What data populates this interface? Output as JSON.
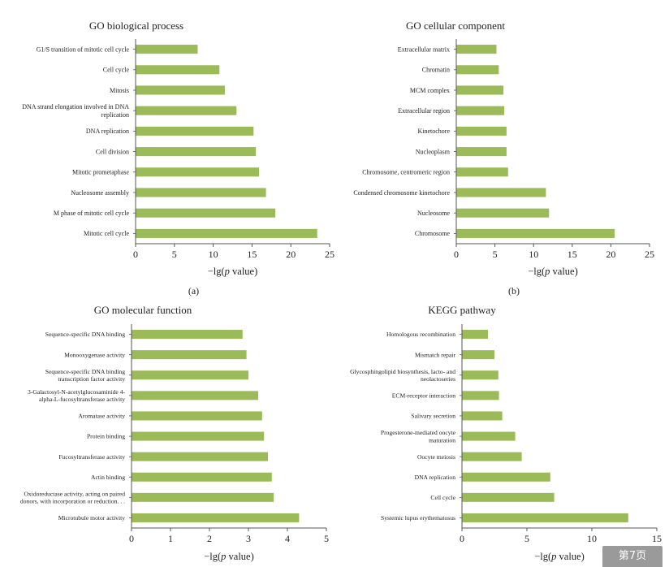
{
  "chart_data": [
    {
      "type": "bar",
      "orientation": "horizontal",
      "title": "GO biological process",
      "panel_label": "(a)",
      "xlabel_prefix": "−lg(",
      "xlabel_italic": "p",
      "xlabel_suffix": " value)",
      "xlim": [
        0,
        25
      ],
      "xticks": [
        0,
        5,
        10,
        15,
        20,
        25
      ],
      "bar_color": "#9bbb59",
      "categories": [
        [
          "G1/S transition of mitotic cell cycle"
        ],
        [
          "Cell cycle"
        ],
        [
          "Mitosis"
        ],
        [
          "DNA strand elongation involved in DNA",
          "replication"
        ],
        [
          "DNA replication"
        ],
        [
          "Cell division"
        ],
        [
          "Mitotic prometaphase"
        ],
        [
          "Nucleosome assembly"
        ],
        [
          "M phase of mitotic cell cycle"
        ],
        [
          "Mitotic cell cycle"
        ]
      ],
      "values": [
        8.0,
        10.8,
        11.5,
        13.0,
        15.2,
        15.5,
        15.9,
        16.8,
        18.0,
        23.4
      ]
    },
    {
      "type": "bar",
      "orientation": "horizontal",
      "title": "GO cellular component",
      "panel_label": "(b)",
      "xlabel_prefix": "−lg(",
      "xlabel_italic": "p",
      "xlabel_suffix": " value)",
      "xlim": [
        0,
        25
      ],
      "xticks": [
        0,
        5,
        10,
        15,
        20,
        25
      ],
      "bar_color": "#9bbb59",
      "categories": [
        [
          "Extracellular matrix"
        ],
        [
          "Chromatin"
        ],
        [
          "MCM complex"
        ],
        [
          "Extracellular region"
        ],
        [
          "Kinetochore"
        ],
        [
          "Nucleoplasm"
        ],
        [
          "Chromosome, centromeric region"
        ],
        [
          "Condensed chromosome kinetochore"
        ],
        [
          "Nucleosome"
        ],
        [
          "Chromosome"
        ]
      ],
      "values": [
        5.2,
        5.5,
        6.1,
        6.2,
        6.5,
        6.5,
        6.7,
        11.6,
        12.0,
        20.5
      ]
    },
    {
      "type": "bar",
      "orientation": "horizontal",
      "title": "GO molecular function",
      "panel_label": "",
      "xlabel_prefix": "−lg(",
      "xlabel_italic": "p",
      "xlabel_suffix": " value)",
      "xlim": [
        0,
        5
      ],
      "xticks": [
        0,
        1,
        2,
        3,
        4,
        5
      ],
      "bar_color": "#9bbb59",
      "categories": [
        [
          "Sequence-specific DNA binding"
        ],
        [
          "Monooxygenase activity"
        ],
        [
          "Sequence-specific DNA binding",
          "transcription factor activity"
        ],
        [
          "3-Galactosyl-N-acetylglucosaminide 4-",
          "alpha-L-fucosyltransferase activity"
        ],
        [
          "Aromatase activity"
        ],
        [
          "Protein binding"
        ],
        [
          "Fucosyltransferase activity"
        ],
        [
          "Actin binding"
        ],
        [
          "Oxidoreductase activity, acting on paired",
          "donors, with incorporation or reduction. . ."
        ],
        [
          "Microtubule motor activity"
        ]
      ],
      "values": [
        2.85,
        2.95,
        3.0,
        3.25,
        3.35,
        3.4,
        3.5,
        3.6,
        3.65,
        4.3
      ]
    },
    {
      "type": "bar",
      "orientation": "horizontal",
      "title": "KEGG pathway",
      "panel_label": "",
      "xlabel_prefix": "−lg(",
      "xlabel_italic": "p",
      "xlabel_suffix": " value)",
      "xlim": [
        0,
        15
      ],
      "xticks": [
        0,
        5,
        10,
        15
      ],
      "bar_color": "#9bbb59",
      "categories": [
        [
          "Homologous recombination"
        ],
        [
          "Mismatch repair"
        ],
        [
          "Glycosphingolipid biosynthesis, lacto- and",
          "neolactoseries"
        ],
        [
          "ECM-receptor interaction"
        ],
        [
          "Salivary secretion"
        ],
        [
          "Progesterone-mediated oocyte",
          "maturation"
        ],
        [
          "Oocyte meiosis"
        ],
        [
          "DNA replication"
        ],
        [
          "Cell cycle"
        ],
        [
          "Systemic lupus erythematosus"
        ]
      ],
      "values": [
        2.0,
        2.5,
        2.8,
        2.85,
        3.1,
        4.1,
        4.6,
        6.8,
        7.1,
        12.8
      ]
    }
  ],
  "page_badge": "第7页"
}
